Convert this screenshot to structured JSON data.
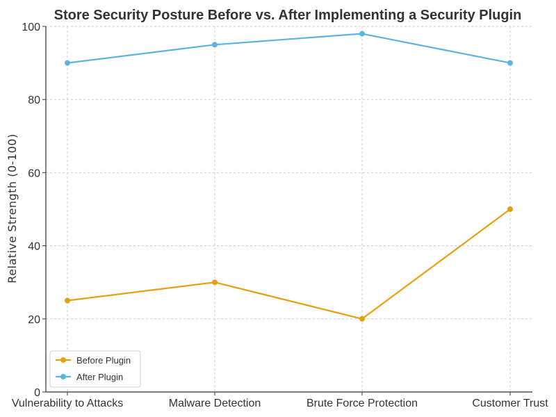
{
  "chart_data": {
    "type": "line",
    "title": "Store Security Posture Before vs. After Implementing a Security Plugin",
    "xlabel": "",
    "ylabel": "Relative Strength (0-100)",
    "categories": [
      "Vulnerability to Attacks",
      "Malware Detection",
      "Brute Force Protection",
      "Customer Trust"
    ],
    "ylim": [
      0,
      100
    ],
    "yticks": [
      0,
      20,
      40,
      60,
      80,
      100
    ],
    "grid": true,
    "legend_position": "bottom-left",
    "series": [
      {
        "name": "Before Plugin",
        "values": [
          25,
          30,
          20,
          50
        ],
        "color": "#e6a00f"
      },
      {
        "name": "After Plugin",
        "values": [
          90,
          95,
          98,
          90
        ],
        "color": "#5ab4e0"
      }
    ]
  }
}
